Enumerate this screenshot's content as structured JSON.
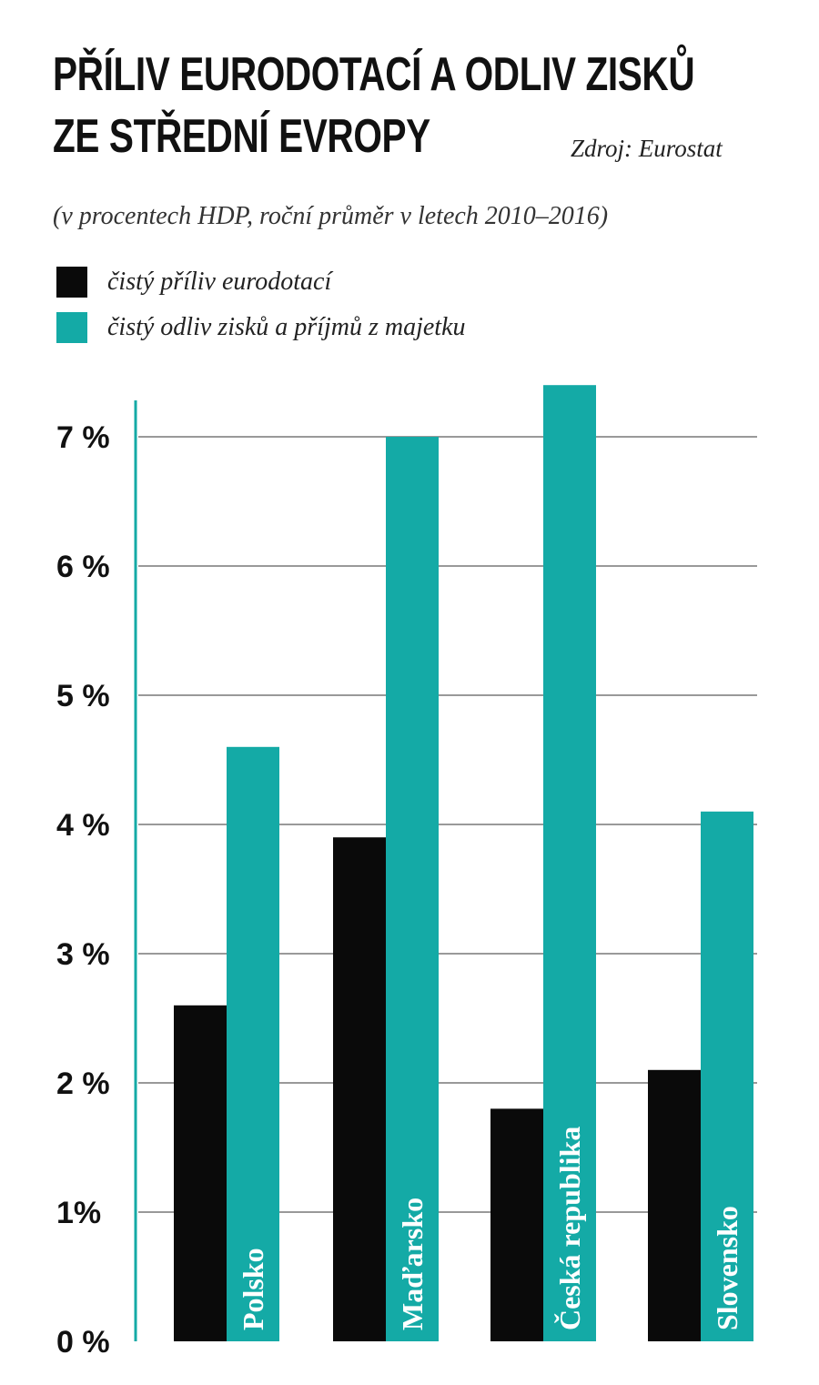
{
  "title_lines": [
    "PŘÍLIV EURODOTACÍ A ODLIV ZISKŮ",
    "ZE STŘEDNÍ EVROPY"
  ],
  "source": "Zdroj: Eurostat",
  "subtitle": "(v procentech HDP, roční průměr v letech 2010–2016)",
  "colors": {
    "black": "#0a0a0a",
    "teal": "#14aaa6",
    "grid": "#999999"
  },
  "chart_data": {
    "type": "bar",
    "title": "PŘÍLIV EURODOTACÍ A ODLIV ZISKŮ ZE STŘEDNÍ EVROPY",
    "subtitle": "(v procentech HDP, roční průměr v letech 2010–2016)",
    "categories": [
      "Polsko",
      "Maďarsko",
      "Česká republika",
      "Slovensko"
    ],
    "series": [
      {
        "name": "čistý příliv eurodotací",
        "values": [
          2.6,
          3.9,
          1.8,
          2.1
        ]
      },
      {
        "name": "čistý odliv zisků a příjmů z majetku",
        "values": [
          4.6,
          7.0,
          7.4,
          4.1
        ]
      }
    ],
    "yticks": [
      "0 %",
      "1%",
      "2 %",
      "3 %",
      "4 %",
      "5 %",
      "6 %",
      "7 %"
    ],
    "ylim": [
      0,
      7.4
    ],
    "grid": true,
    "legend": "top-left"
  }
}
